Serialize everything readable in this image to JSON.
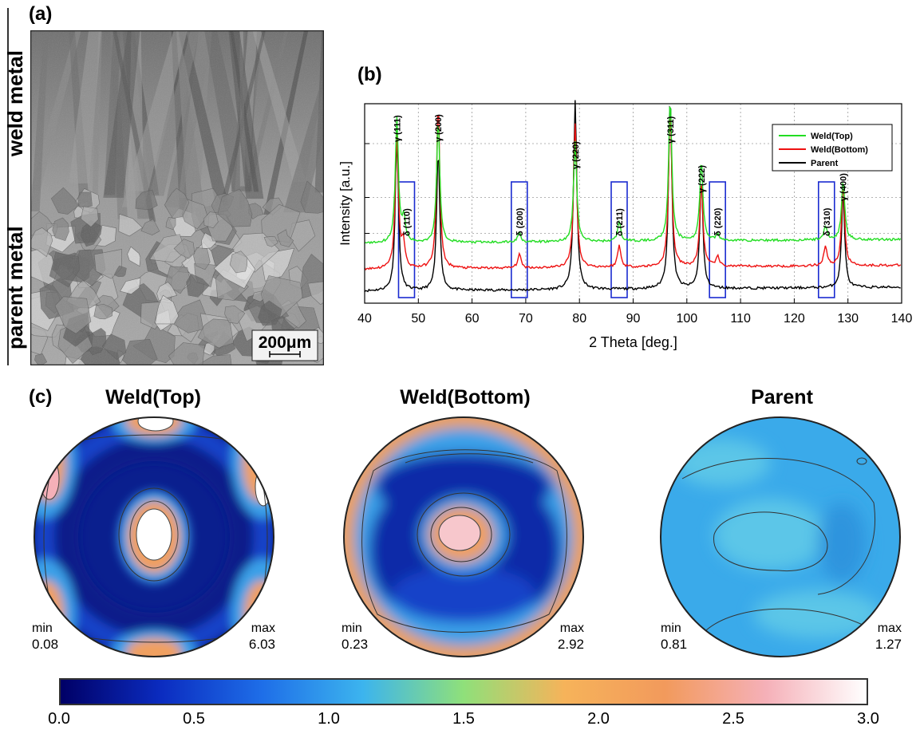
{
  "panels": {
    "a": {
      "label": "(a)",
      "top_label": "weld metal",
      "bottom_label": "parent metal",
      "scale_bar": "200μm"
    },
    "b": {
      "label": "(b)"
    },
    "c": {
      "label": "(c)"
    }
  },
  "chart_data": {
    "type": "line",
    "xlabel": "2 Theta [deg.]",
    "ylabel": "Intensity [a.u.]",
    "xlim": [
      40,
      140
    ],
    "xticks": [
      "40",
      "50",
      "60",
      "70",
      "80",
      "90",
      "100",
      "110",
      "120",
      "130",
      "140"
    ],
    "grid": true,
    "legend_position": "top-right",
    "series": [
      {
        "name": "Weld(Top)",
        "color": "#22dd22",
        "offset": 0.3,
        "peaks": [
          [
            46,
            0.62
          ],
          [
            47.3,
            0.12
          ],
          [
            53.7,
            0.62
          ],
          [
            68.8,
            0.05
          ],
          [
            79.2,
            0.5
          ],
          [
            87.4,
            0.1
          ],
          [
            96.9,
            0.72
          ],
          [
            102.7,
            0.4
          ],
          [
            105.7,
            0.03
          ],
          [
            125.8,
            0.07
          ],
          [
            129.1,
            0.3
          ]
        ]
      },
      {
        "name": "Weld(Bottom)",
        "color": "#ee1111",
        "offset": 0.17,
        "peaks": [
          [
            46,
            0.68
          ],
          [
            47.2,
            0.12
          ],
          [
            53.7,
            0.83
          ],
          [
            68.8,
            0.07
          ],
          [
            79.2,
            0.72
          ],
          [
            87.4,
            0.11
          ],
          [
            96.9,
            0.8
          ],
          [
            102.7,
            0.43
          ],
          [
            105.7,
            0.05
          ],
          [
            125.8,
            0.1
          ],
          [
            129.1,
            0.4
          ]
        ]
      },
      {
        "name": "Parent",
        "color": "#000000",
        "offset": 0.06,
        "peaks": [
          [
            46,
            0.78
          ],
          [
            53.7,
            0.7
          ],
          [
            79.2,
            0.95
          ],
          [
            96.9,
            0.98
          ],
          [
            102.7,
            0.55
          ],
          [
            129.1,
            0.47
          ]
        ]
      }
    ],
    "peak_labels": [
      {
        "text": "γ (111)",
        "x": 46
      },
      {
        "text": "δ (110)",
        "x": 47.8,
        "boxed": true
      },
      {
        "text": "γ (200)",
        "x": 53.7
      },
      {
        "text": "δ (200)",
        "x": 68.8,
        "boxed": true
      },
      {
        "text": "γ (220)",
        "x": 79.2
      },
      {
        "text": "δ (211)",
        "x": 87.4,
        "boxed": true
      },
      {
        "text": "γ (311)",
        "x": 96.9
      },
      {
        "text": "γ (222)",
        "x": 102.7
      },
      {
        "text": "δ (220)",
        "x": 105.7,
        "boxed": true
      },
      {
        "text": "δ (310)",
        "x": 126.0,
        "boxed": true
      },
      {
        "text": "γ (400)",
        "x": 129.1
      }
    ]
  },
  "pole_figures": [
    {
      "title": "Weld(Top)",
      "min_label": "min",
      "min": "0.08",
      "max_label": "max",
      "max": "6.03"
    },
    {
      "title": "Weld(Bottom)",
      "min_label": "min",
      "min": "0.23",
      "max_label": "max",
      "max": "2.92"
    },
    {
      "title": "Parent",
      "min_label": "min",
      "min": "0.81",
      "max_label": "max",
      "max": "1.27"
    }
  ],
  "colorbar": {
    "range": [
      0,
      3
    ],
    "ticks": [
      "0.0",
      "0.5",
      "1.0",
      "1.5",
      "2.0",
      "2.5",
      "3.0"
    ],
    "colors": [
      "#000066",
      "#0b2cc0",
      "#1e6ee8",
      "#3cb4ee",
      "#8fe07a",
      "#f6b35a",
      "#f29a5c",
      "#f5b0b8",
      "#ffffff"
    ]
  }
}
